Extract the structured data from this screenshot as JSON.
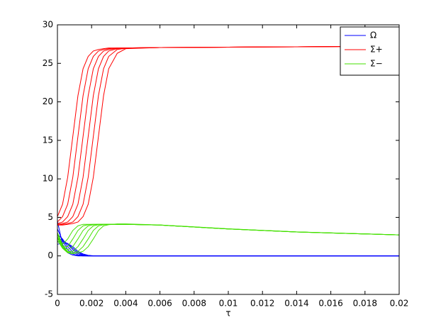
{
  "chart_data": {
    "type": "line",
    "xlabel": "τ",
    "x": [
      0,
      0.0003,
      0.0006,
      0.0009,
      0.0012,
      0.0015,
      0.0018,
      0.0021,
      0.0024,
      0.0027,
      0.003,
      0.0035,
      0.004,
      0.006,
      0.01,
      0.014,
      0.018,
      0.02
    ],
    "xlim": [
      0,
      0.02
    ],
    "xticks": [
      0,
      0.002,
      0.004,
      0.006,
      0.008,
      0.01,
      0.012,
      0.014,
      0.016,
      0.018,
      0.02
    ],
    "ylim": [
      -5,
      30
    ],
    "yticks": [
      -5,
      0,
      5,
      10,
      15,
      20,
      25,
      30
    ],
    "grid": false,
    "legend": "top-right",
    "series": [
      {
        "name": "Ω",
        "color": "#0000ff",
        "lines": [
          [
            4.5,
            1.5,
            0.4,
            0.1,
            0,
            0,
            0,
            0,
            0,
            0,
            0,
            0,
            0,
            0,
            0,
            0,
            0,
            0
          ],
          [
            3.5,
            2,
            0.8,
            0.25,
            0.05,
            0,
            0,
            0,
            0,
            0,
            0,
            0,
            0,
            0,
            0,
            0,
            0,
            0
          ],
          [
            2.8,
            2.2,
            1.2,
            0.5,
            0.15,
            0.03,
            0,
            0,
            0,
            0,
            0,
            0,
            0,
            0,
            0,
            0,
            0,
            0
          ],
          [
            2.2,
            2.1,
            1.5,
            0.8,
            0.3,
            0.08,
            0,
            0,
            0,
            0,
            0,
            0,
            0,
            0,
            0,
            0,
            0,
            0
          ],
          [
            1.8,
            1.9,
            1.6,
            1.0,
            0.45,
            0.15,
            0.04,
            0,
            0,
            0,
            0,
            0,
            0,
            0,
            0,
            0,
            0,
            0
          ],
          [
            1.5,
            1.7,
            1.6,
            1.2,
            0.6,
            0.25,
            0.08,
            0.02,
            0,
            0,
            0,
            0,
            0,
            0,
            0,
            0,
            0,
            0
          ]
        ]
      },
      {
        "name": "Σ+",
        "color": "#ff0000",
        "lines": [
          [
            5.1,
            6.7,
            10.2,
            15.5,
            20.8,
            24.3,
            25.9,
            26.6,
            26.8,
            26.9,
            27,
            27,
            27,
            27.05,
            27.1,
            27.15,
            27.2,
            27.2
          ],
          [
            4.4,
            5.1,
            6.7,
            10.2,
            15.5,
            20.8,
            24.3,
            25.9,
            26.6,
            26.8,
            26.9,
            27,
            27,
            27.05,
            27.1,
            27.15,
            27.2,
            27.2
          ],
          [
            4.2,
            4.4,
            5.1,
            6.7,
            10.2,
            15.5,
            20.8,
            24.3,
            25.9,
            26.6,
            26.8,
            26.95,
            27,
            27.05,
            27.1,
            27.15,
            27.2,
            27.2
          ],
          [
            4.1,
            4.2,
            4.4,
            5.1,
            6.7,
            10.2,
            15.5,
            20.8,
            24.3,
            25.9,
            26.6,
            26.9,
            27,
            27.05,
            27.1,
            27.15,
            27.2,
            27.2
          ],
          [
            4.0,
            4.1,
            4.2,
            4.4,
            5.1,
            6.7,
            10.2,
            15.5,
            20.8,
            24.3,
            25.9,
            26.8,
            26.95,
            27.05,
            27.1,
            27.15,
            27.2,
            27.2
          ],
          [
            4.0,
            4.0,
            4.1,
            4.2,
            4.4,
            5.1,
            6.7,
            10.2,
            15.5,
            20.8,
            24.3,
            26.3,
            26.9,
            27.05,
            27.1,
            27.15,
            27.2,
            27.2
          ]
        ]
      },
      {
        "name": "Σ−",
        "color": "#44e000",
        "lines": [
          [
            3,
            1.5,
            2.2,
            3.3,
            3.9,
            4.1,
            4.1,
            4.1,
            4.1,
            4.1,
            4.1,
            4.1,
            4.1,
            4.0,
            3.5,
            3.1,
            2.85,
            2.72
          ],
          [
            3,
            1.3,
            1.2,
            2.2,
            3.3,
            3.9,
            4.05,
            4.1,
            4.1,
            4.1,
            4.1,
            4.1,
            4.1,
            4.0,
            3.5,
            3.1,
            2.85,
            2.72
          ],
          [
            2.8,
            1.3,
            0.8,
            1.2,
            2.2,
            3.3,
            3.9,
            4.05,
            4.1,
            4.1,
            4.1,
            4.1,
            4.1,
            4.0,
            3.5,
            3.1,
            2.85,
            2.72
          ],
          [
            2.5,
            1.2,
            0.6,
            0.6,
            1.2,
            2.2,
            3.3,
            3.9,
            4.05,
            4.1,
            4.1,
            4.1,
            4.1,
            4.0,
            3.5,
            3.1,
            2.85,
            2.72
          ],
          [
            2.3,
            1.1,
            0.5,
            0.4,
            0.6,
            1.2,
            2.2,
            3.3,
            3.9,
            4.05,
            4.1,
            4.1,
            4.1,
            4.0,
            3.5,
            3.1,
            2.85,
            2.72
          ],
          [
            2.0,
            1.0,
            0.4,
            0.3,
            0.4,
            0.6,
            1.2,
            2.2,
            3.3,
            3.9,
            4.05,
            4.15,
            4.15,
            4.02,
            3.52,
            3.12,
            2.86,
            2.73
          ]
        ]
      }
    ]
  }
}
